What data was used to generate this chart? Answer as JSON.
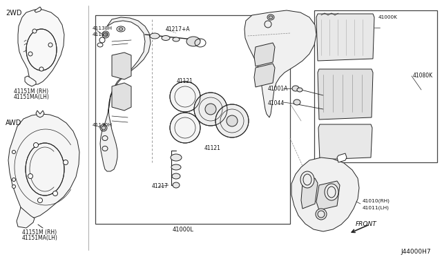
{
  "bg_color": "#ffffff",
  "line_color": "#222222",
  "diagram_id": "J44000H7",
  "label_2wd": "2WD",
  "label_awd": "AWD",
  "label_41151m": "41151M (RH)",
  "label_41151ma": "41151MA(LH)",
  "label_41138h": "41138H",
  "label_41128": "41128",
  "label_41217a": "41217+A",
  "label_41001a": "41001A",
  "label_41044": "41044",
  "label_41130h": "41130H",
  "label_41217": "41217",
  "label_41121_top": "41121",
  "label_41121_bot": "41121",
  "label_41000l": "41000L",
  "label_41000k": "41000K",
  "label_41080k": "41080K",
  "label_41010": "41010(RH)",
  "label_41011": "41011(LH)",
  "label_front": "FRONT"
}
